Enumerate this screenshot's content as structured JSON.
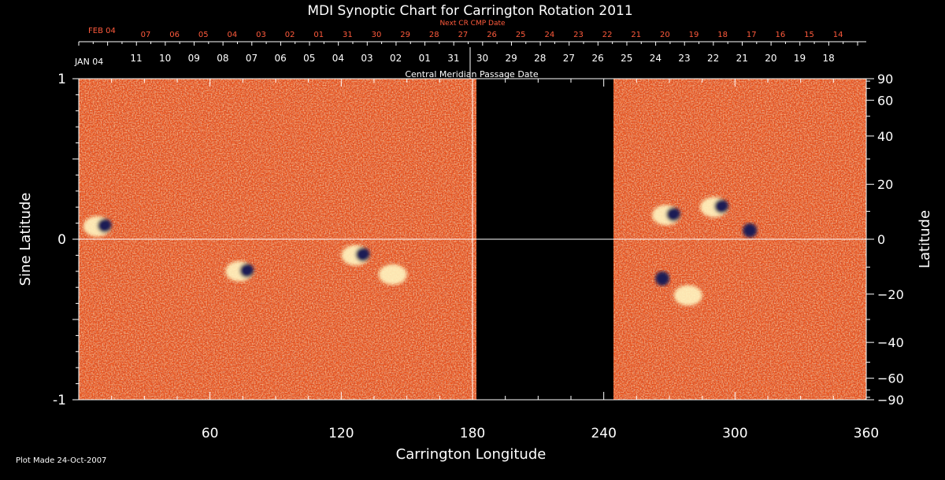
{
  "chart_data": {
    "type": "heatmap",
    "title": "MDI Synoptic Chart for Carrington Rotation 2011",
    "xlabel": "Carrington Longitude",
    "ylabel_left": "Sine Latitude",
    "ylabel_right": "Latitude",
    "xlim": [
      0,
      360
    ],
    "ylim": [
      -1,
      1
    ],
    "x_ticks": [
      60,
      120,
      180,
      240,
      300,
      360
    ],
    "y_ticks_left": [
      -1,
      0,
      1
    ],
    "y_ticks_right": [
      -90,
      -60,
      -40,
      -20,
      0,
      20,
      40,
      60,
      90
    ],
    "gridlines": {
      "latitude_zero": true,
      "longitude_180": true
    },
    "missing_data_longitude_range": [
      182,
      244
    ],
    "top_axis_label": "Central Meridian Passage Date",
    "top_axis_start": "JAN 04",
    "top_axis_dates": [
      "11",
      "10",
      "09",
      "08",
      "07",
      "06",
      "05",
      "04",
      "03",
      "02",
      "01",
      "31",
      "30",
      "29",
      "28",
      "27",
      "26",
      "25",
      "24",
      "23",
      "22",
      "21",
      "20",
      "19",
      "18"
    ],
    "next_cr_label": "Next CR CMP Date",
    "next_cr_start": "FEB 04",
    "next_cr_dates": [
      "07",
      "06",
      "05",
      "04",
      "03",
      "02",
      "01",
      "31",
      "30",
      "29",
      "28",
      "27",
      "26",
      "25",
      "24",
      "23",
      "22",
      "21",
      "20",
      "19",
      "18",
      "17",
      "16",
      "15",
      "14"
    ],
    "plot_note": "Plot Made 24-Oct-2007",
    "features": [
      {
        "lon": 10,
        "sinlat": 0.08,
        "polarity": "mixed"
      },
      {
        "lon": 75,
        "sinlat": -0.2,
        "polarity": "mixed"
      },
      {
        "lon": 128,
        "sinlat": -0.1,
        "polarity": "mixed"
      },
      {
        "lon": 145,
        "sinlat": -0.22,
        "polarity": "positive"
      },
      {
        "lon": 270,
        "sinlat": 0.15,
        "polarity": "mixed"
      },
      {
        "lon": 292,
        "sinlat": 0.2,
        "polarity": "mixed"
      },
      {
        "lon": 305,
        "sinlat": 0.05,
        "polarity": "negative"
      },
      {
        "lon": 280,
        "sinlat": -0.35,
        "polarity": "positive"
      },
      {
        "lon": 265,
        "sinlat": -0.25,
        "polarity": "negative"
      }
    ],
    "colors": {
      "background": "#000000",
      "field_base": "#e8501a",
      "positive": "#fff4c0",
      "negative": "#1a1a55",
      "axis": "#ffffff",
      "next_cr": "#ff5a3c"
    }
  }
}
